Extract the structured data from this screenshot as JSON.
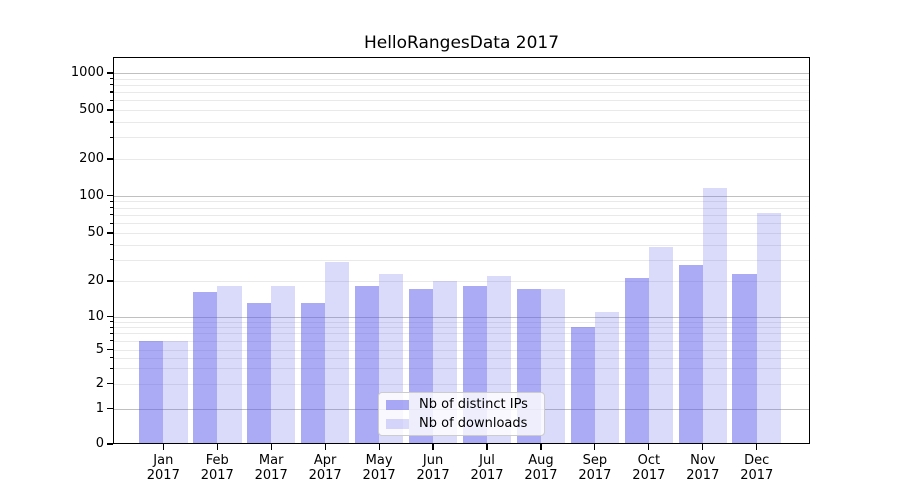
{
  "chart_data": {
    "type": "bar",
    "title": "HelloRangesData 2017",
    "categories": [
      "Jan",
      "Feb",
      "Mar",
      "Apr",
      "May",
      "Jun",
      "Jul",
      "Aug",
      "Sep",
      "Oct",
      "Nov",
      "Dec"
    ],
    "category_year": "2017",
    "series": [
      {
        "key": "distinct-ips",
        "name": "Nb of distinct IPs",
        "color": "#5555eb",
        "alpha": 0.5,
        "values": [
          6,
          16,
          13,
          13,
          18,
          17,
          18,
          17,
          8,
          21,
          27,
          23
        ]
      },
      {
        "key": "downloads",
        "name": "Nb of downloads",
        "color": "#5555eb",
        "alpha": 0.22,
        "values": [
          6,
          18,
          18,
          29,
          23,
          20,
          22,
          17,
          11,
          38,
          115,
          73
        ]
      }
    ],
    "y_ticks": [
      {
        "value": 0,
        "label": "0"
      },
      {
        "value": 1,
        "label": "1"
      },
      {
        "value": 2,
        "label": "2"
      },
      {
        "value": 5,
        "label": "5"
      },
      {
        "value": 10,
        "label": "10"
      },
      {
        "value": 20,
        "label": "20"
      },
      {
        "value": 50,
        "label": "50"
      },
      {
        "value": 100,
        "label": "100"
      },
      {
        "value": 200,
        "label": "200"
      },
      {
        "value": 500,
        "label": "500"
      },
      {
        "value": 1000,
        "label": "1000"
      }
    ],
    "yscale": "log-like with zero baseline (ticks 0,1,2,5,10,20,50,100,200,500,1000)",
    "ylim": [
      0,
      1375
    ],
    "xlabel": "",
    "ylabel": "",
    "grid": "horizontal major and minor gridlines",
    "legend": {
      "position": "lower center",
      "entries": [
        "Nb of distinct IPs",
        "Nb of downloads"
      ]
    }
  },
  "colors": {
    "background": "#ffffff",
    "axis": "#000000",
    "major_grid": "#c0c0c0",
    "minor_grid": "#e9e9e9",
    "legend_border": "#cccccc",
    "bar_base": "#5555eb"
  }
}
